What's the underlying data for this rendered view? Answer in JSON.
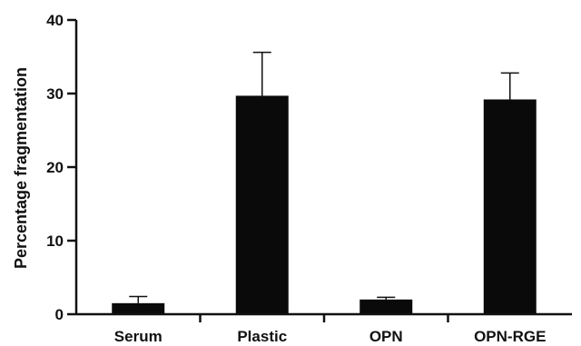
{
  "chart_data": {
    "type": "bar",
    "title": "",
    "xlabel": "",
    "ylabel": "Percentage fragmentation",
    "categories": [
      "Serum",
      "Plastic",
      "OPN",
      "OPN-RGE"
    ],
    "values": [
      1.5,
      29.7,
      2.0,
      29.2
    ],
    "error_upper": [
      2.4,
      35.6,
      2.3,
      32.8
    ],
    "ylim": [
      0,
      40
    ],
    "yticks": [
      0,
      10,
      20,
      30,
      40
    ],
    "ytick_labels": [
      "0",
      "10",
      "20",
      "30",
      "40"
    ],
    "grid": false,
    "legend": "none",
    "bar_color": "#0a0a0a",
    "axis_color": "#111111"
  }
}
